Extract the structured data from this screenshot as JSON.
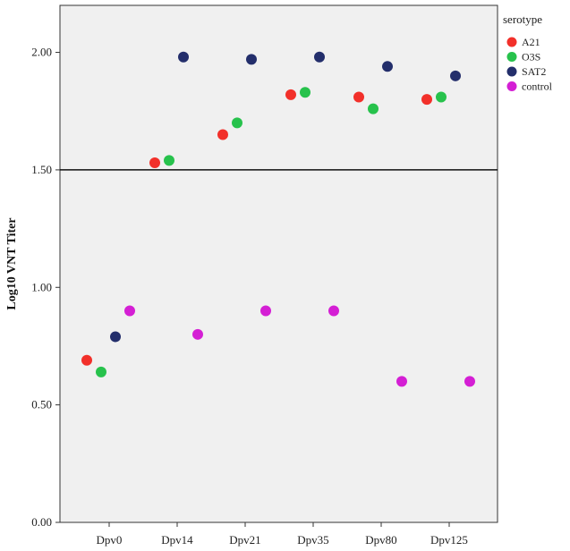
{
  "chart_data": {
    "type": "scatter",
    "ylabel": "Log10 VNT Titer",
    "xlabel": "",
    "categories": [
      "Dpv0",
      "Dpv14",
      "Dpv21",
      "Dpv35",
      "Dpv80",
      "Dpv125"
    ],
    "ylim": [
      0,
      2.2
    ],
    "yticks": [
      "0.00",
      "0.50",
      "1.00",
      "1.50",
      "2.00"
    ],
    "reference_line_y": 1.5,
    "grid": false,
    "legend": {
      "title": "serotype",
      "placement": "right"
    },
    "series": [
      {
        "name": "A21",
        "color": "#f2302a",
        "values": [
          0.69,
          1.53,
          1.65,
          1.82,
          1.81,
          1.8
        ]
      },
      {
        "name": "O3S",
        "color": "#27c24c",
        "values": [
          0.64,
          1.54,
          1.7,
          1.83,
          1.76,
          1.81
        ]
      },
      {
        "name": "SAT2",
        "color": "#232e6b",
        "values": [
          0.79,
          1.98,
          1.97,
          1.98,
          1.94,
          1.9
        ]
      },
      {
        "name": "control",
        "color": "#d41fd4",
        "values": [
          0.9,
          0.8,
          0.9,
          0.9,
          0.6,
          0.6
        ]
      }
    ]
  }
}
